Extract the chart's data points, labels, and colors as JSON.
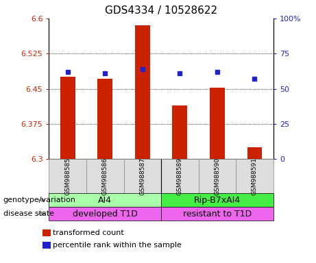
{
  "title": "GDS4334 / 10528622",
  "samples": [
    "GSM988585",
    "GSM988586",
    "GSM988587",
    "GSM988589",
    "GSM988590",
    "GSM988591"
  ],
  "bar_values": [
    6.475,
    6.472,
    6.585,
    6.415,
    6.452,
    6.325
  ],
  "percentile_values": [
    62,
    61,
    64,
    61,
    62,
    57
  ],
  "ylim_left": [
    6.3,
    6.6
  ],
  "ylim_right": [
    0,
    100
  ],
  "yticks_left": [
    6.3,
    6.375,
    6.45,
    6.525,
    6.6
  ],
  "ytick_labels_left": [
    "6.3",
    "6.375",
    "6.45",
    "6.525",
    "6.6"
  ],
  "yticks_right": [
    0,
    25,
    50,
    75,
    100
  ],
  "ytick_labels_right": [
    "0",
    "25",
    "50",
    "75",
    "100%"
  ],
  "bar_color": "#cc2200",
  "dot_color": "#2222cc",
  "bar_bottom": 6.3,
  "genotype_labels": [
    [
      "AI4",
      0,
      3
    ],
    [
      "Rip-B7xAI4",
      3,
      6
    ]
  ],
  "genotype_colors": [
    "#aaffaa",
    "#44ee44"
  ],
  "disease_labels": [
    [
      "developed T1D",
      0,
      3
    ],
    [
      "resistant to T1D",
      3,
      6
    ]
  ],
  "disease_color": "#ee66ee",
  "label_fontsize": 9,
  "tick_fontsize": 8,
  "title_fontsize": 11,
  "legend_items": [
    {
      "label": "transformed count",
      "color": "#cc2200"
    },
    {
      "label": "percentile rank within the sample",
      "color": "#2222cc"
    }
  ]
}
